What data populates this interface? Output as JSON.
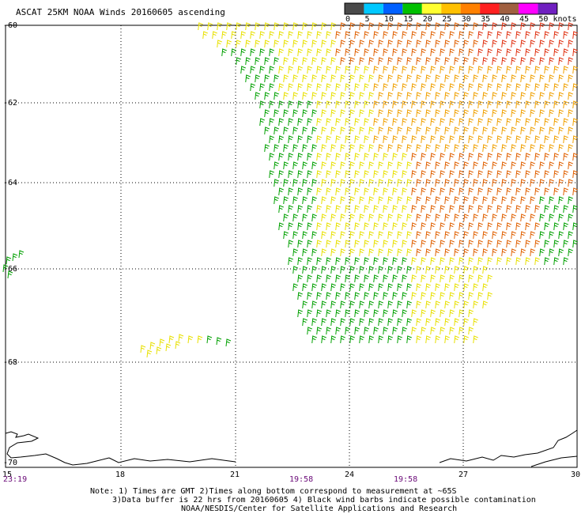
{
  "title": "ASCAT 25KM NOAA Winds 20160605 ascending",
  "speed_scale": {
    "labels": [
      "0",
      "5",
      "10",
      "15",
      "20",
      "25",
      "30",
      "35",
      "40",
      "45",
      "50 knots"
    ],
    "colors": [
      "#4a4a4a",
      "#00c8ff",
      "#0060ff",
      "#00c000",
      "#ffff30",
      "#ffc000",
      "#ff8000",
      "#ff2020",
      "#a06040",
      "#ff00ff",
      "#7020c0"
    ]
  },
  "latitude_labels": [
    "-60",
    "-62",
    "-64",
    "-66",
    "-68",
    "-70"
  ],
  "longitude_labels": [
    "15",
    "18",
    "21",
    "24",
    "27",
    "30"
  ],
  "times": [
    "23:19",
    "19:58",
    "19:58"
  ],
  "notes": [
    "Note: 1) Times are GMT 2)Times along bottom correspond to measurement at ~65S",
    "3)Data buffer is 22 hrs from 20160605 4) Black wind barbs indicate possible contamination",
    "NOAA/NESDIS/Center for Satellite Applications and Research"
  ]
}
